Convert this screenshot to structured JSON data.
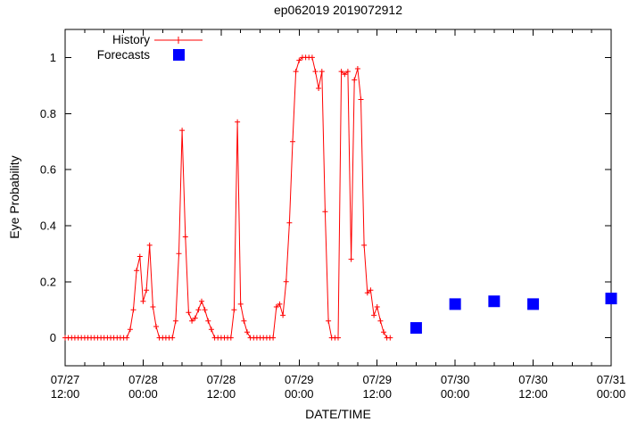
{
  "title": "ep062019 2019072912",
  "legend": {
    "history_label": "History",
    "forecasts_label": "Forecasts"
  },
  "axes": {
    "xlabel": "DATE/TIME",
    "ylabel": "Eye Probability"
  },
  "colors": {
    "history": "#ff0000",
    "forecast": "#0000ff",
    "axis": "#000000",
    "background": "#ffffff"
  },
  "chart_data": {
    "type": "line",
    "title": "ep062019 2019072912",
    "xlabel": "DATE/TIME",
    "ylabel": "Eye Probability",
    "legend_position": "top-left-inside",
    "grid": false,
    "ylim": [
      -0.1,
      1.1
    ],
    "y_ticks": [
      {
        "v": 0,
        "label": "0"
      },
      {
        "v": 0.2,
        "label": "0.2"
      },
      {
        "v": 0.4,
        "label": "0.4"
      },
      {
        "v": 0.6,
        "label": "0.6"
      },
      {
        "v": 0.8,
        "label": "0.8"
      },
      {
        "v": 1,
        "label": "1"
      }
    ],
    "x_range_hours": [
      0,
      84
    ],
    "x_minor_tick_hours": 3,
    "x_ticks": [
      {
        "hours": 0,
        "date": "07/27",
        "time": "12:00"
      },
      {
        "hours": 12,
        "date": "07/28",
        "time": "00:00"
      },
      {
        "hours": 24,
        "date": "07/28",
        "time": "12:00"
      },
      {
        "hours": 36,
        "date": "07/29",
        "time": "00:00"
      },
      {
        "hours": 48,
        "date": "07/29",
        "time": "12:00"
      },
      {
        "hours": 60,
        "date": "07/30",
        "time": "00:00"
      },
      {
        "hours": 72,
        "date": "07/30",
        "time": "12:00"
      },
      {
        "hours": 84,
        "date": "07/31",
        "time": "00:00"
      }
    ],
    "series": [
      {
        "name": "History",
        "style": "line-with-plus-markers",
        "color": "#ff0000",
        "start": "07/27 12:00",
        "step_minutes": 30,
        "values": [
          0,
          0,
          0,
          0,
          0,
          0,
          0,
          0,
          0,
          0,
          0,
          0,
          0,
          0,
          0,
          0,
          0,
          0,
          0,
          0,
          0.03,
          0.1,
          0.24,
          0.29,
          0.13,
          0.17,
          0.33,
          0.11,
          0.04,
          0,
          0,
          0,
          0,
          0,
          0.06,
          0.3,
          0.74,
          0.36,
          0.09,
          0.06,
          0.07,
          0.1,
          0.13,
          0.1,
          0.06,
          0.03,
          0,
          0,
          0,
          0,
          0,
          0,
          0.1,
          0.77,
          0.12,
          0.06,
          0.02,
          0,
          0,
          0,
          0,
          0,
          0,
          0,
          0,
          0.11,
          0.12,
          0.08,
          0.2,
          0.41,
          0.7,
          0.95,
          0.99,
          1.0,
          1.0,
          1.0,
          1.0,
          0.95,
          0.89,
          0.95,
          0.45,
          0.06,
          0,
          0,
          0,
          0.95,
          0.94,
          0.95,
          0.28,
          0.92,
          0.96,
          0.85,
          0.33,
          0.16,
          0.17,
          0.08,
          0.11,
          0.06,
          0.02,
          0,
          0
        ]
      },
      {
        "name": "Forecasts",
        "style": "filled-squares",
        "color": "#0000ff",
        "points": [
          {
            "label": "07/29 18:00",
            "hours": 54,
            "value": 0.035
          },
          {
            "label": "07/30 00:00",
            "hours": 60,
            "value": 0.12
          },
          {
            "label": "07/30 06:00",
            "hours": 66,
            "value": 0.13
          },
          {
            "label": "07/30 12:00",
            "hours": 72,
            "value": 0.12
          },
          {
            "label": "07/31 00:00",
            "hours": 84,
            "value": 0.14
          }
        ]
      }
    ]
  }
}
